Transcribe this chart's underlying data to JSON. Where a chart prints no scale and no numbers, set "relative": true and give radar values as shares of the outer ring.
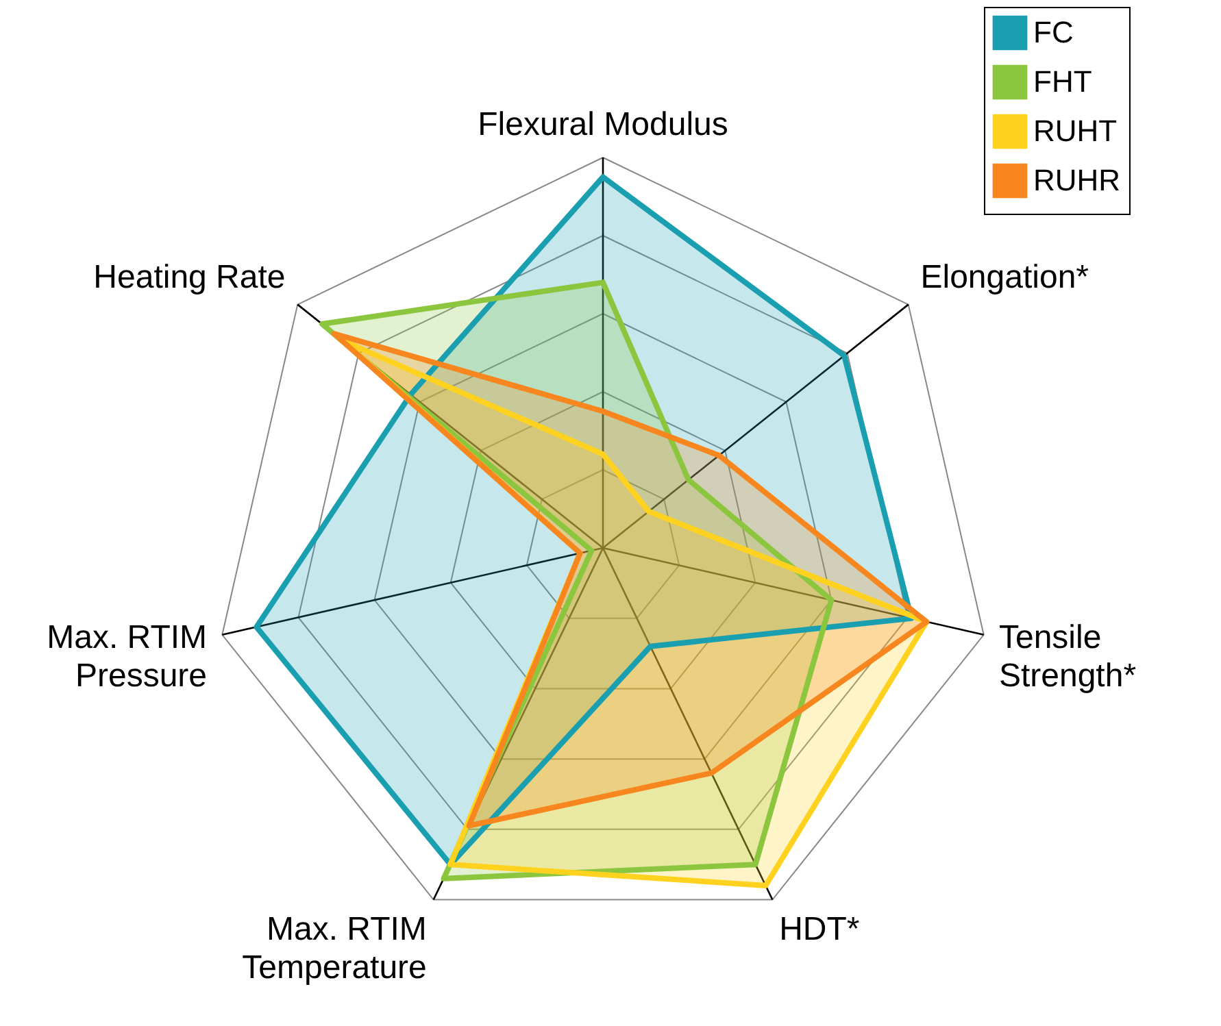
{
  "chart_data": {
    "type": "radar",
    "relative": true,
    "grid": true,
    "legend": "top right",
    "categories": [
      "Flexural Modulus",
      "Elongation*",
      "Tensile Strength*",
      "HDT*",
      "Max. RTIM Temperature",
      "Max. RTIM Pressure",
      "Heating Rate"
    ],
    "series": [
      {
        "name": "FC",
        "color": "#1a9fb0",
        "values": [
          0.95,
          0.79,
          0.81,
          0.28,
          0.9,
          0.91,
          0.63
        ]
      },
      {
        "name": "FHT",
        "color": "#8cc63f",
        "values": [
          0.68,
          0.28,
          0.6,
          0.9,
          0.94,
          0.03,
          0.92
        ]
      },
      {
        "name": "RUHT",
        "color": "#ffd21f",
        "values": [
          0.24,
          0.15,
          0.85,
          0.96,
          0.9,
          0.06,
          0.85
        ]
      },
      {
        "name": "RUHR",
        "color": "#f7861e",
        "values": [
          0.35,
          0.38,
          0.85,
          0.64,
          0.79,
          0.06,
          0.88
        ]
      }
    ]
  }
}
